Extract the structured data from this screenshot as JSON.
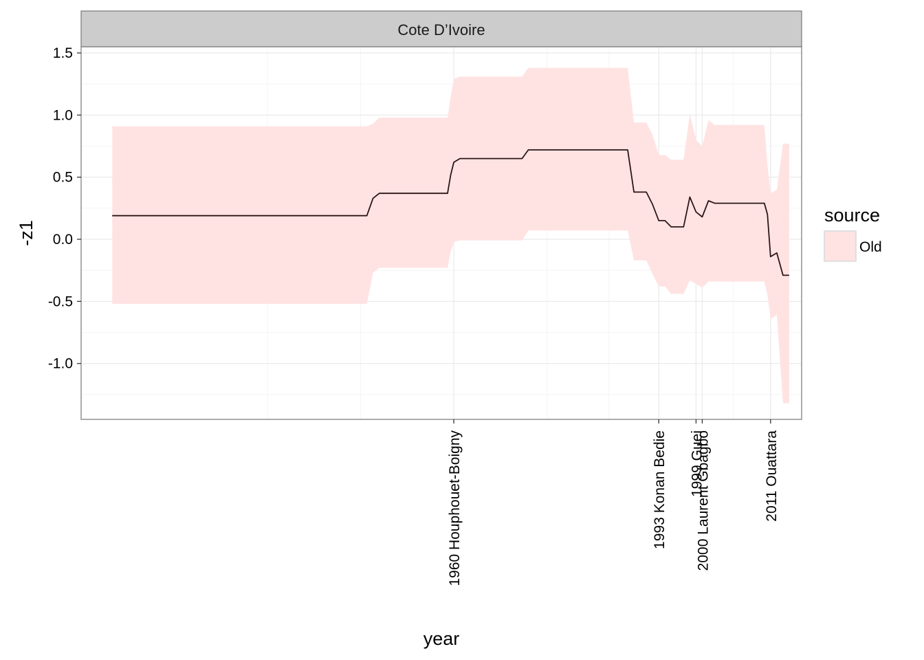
{
  "chart_data": {
    "type": "area",
    "facet": "Cote D’Ivoire",
    "xlabel": "year",
    "ylabel": "-z1",
    "xlim": [
      1900,
      2016
    ],
    "ylim": [
      -1.45,
      1.55
    ],
    "yticks": [
      -1.0,
      -0.5,
      0.0,
      0.5,
      1.0,
      1.5
    ],
    "ytick_labels": [
      "-1.0",
      "-0.5",
      "0.0",
      "0.5",
      "1.0",
      "1.5"
    ],
    "x_labels": [
      {
        "year": 1960,
        "label": "1960 Houphouet-Boigny"
      },
      {
        "year": 1993,
        "label": "1993 Konan Bedie"
      },
      {
        "year": 1999,
        "label": "1999 Guei"
      },
      {
        "year": 2000,
        "label": "2000 Laurent Gbagbo"
      },
      {
        "year": 2011,
        "label": "2011 Ouattara"
      }
    ],
    "x_minor_breaks": [
      1930,
      1945,
      1975,
      1985,
      2005
    ],
    "grid": true,
    "legend": {
      "title": "source",
      "position": "right",
      "entries": [
        "Old"
      ]
    },
    "colors": {
      "ribbon": "#ffe3e3",
      "line": "#2a1515",
      "strip": "#cccccc",
      "grid": "#ebebeb"
    },
    "series": [
      {
        "name": "Old",
        "x": [
          1905,
          1946,
          1947,
          1948,
          1959,
          1959.5,
          1960,
          1961,
          1971,
          1972,
          1988,
          1989,
          1990,
          1991,
          1992,
          1993,
          1994,
          1995,
          1997,
          1998,
          1999,
          2000,
          2001,
          2002,
          2003,
          2004,
          2010,
          2010.5,
          2011,
          2012,
          2013,
          2014
        ],
        "y": [
          0.19,
          0.19,
          0.33,
          0.37,
          0.37,
          0.52,
          0.62,
          0.65,
          0.65,
          0.72,
          0.72,
          0.38,
          0.38,
          0.38,
          0.28,
          0.15,
          0.15,
          0.1,
          0.1,
          0.34,
          0.22,
          0.18,
          0.31,
          0.29,
          0.29,
          0.29,
          0.29,
          0.2,
          -0.14,
          -0.11,
          -0.29,
          -0.29
        ],
        "upper": [
          0.91,
          0.91,
          0.93,
          0.98,
          0.98,
          1.15,
          1.29,
          1.31,
          1.31,
          1.38,
          1.38,
          0.94,
          0.94,
          0.94,
          0.84,
          0.68,
          0.68,
          0.64,
          0.64,
          1.01,
          0.8,
          0.75,
          0.96,
          0.92,
          0.92,
          0.92,
          0.92,
          0.6,
          0.37,
          0.4,
          0.77,
          0.77
        ],
        "lower": [
          -0.52,
          -0.52,
          -0.27,
          -0.23,
          -0.23,
          -0.1,
          -0.02,
          -0.01,
          -0.01,
          0.07,
          0.07,
          -0.17,
          -0.17,
          -0.17,
          -0.28,
          -0.38,
          -0.38,
          -0.44,
          -0.44,
          -0.33,
          -0.36,
          -0.39,
          -0.34,
          -0.34,
          -0.34,
          -0.34,
          -0.34,
          -0.45,
          -0.64,
          -0.61,
          -1.32,
          -1.32
        ]
      }
    ]
  }
}
